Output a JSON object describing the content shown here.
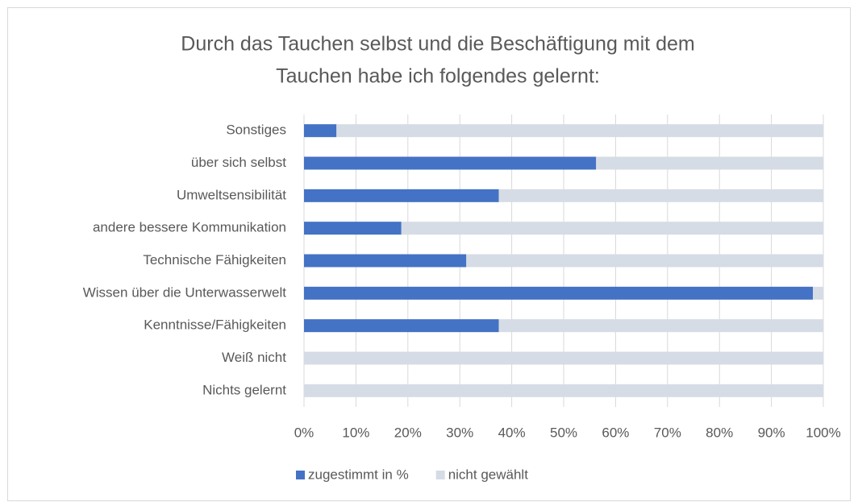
{
  "chart_data": {
    "type": "stacked_barh",
    "title": [
      "Durch das Tauchen selbst und die Beschäftigung mit dem",
      "Tauchen habe ich folgendes gelernt:"
    ],
    "categories": [
      "Sonstiges",
      "über sich selbst",
      "Umweltsensibilität",
      "andere bessere Kommunikation",
      "Technische Fähigkeiten",
      "Wissen über die Unterwasserwelt",
      "Kenntnisse/Fähigkeiten",
      "Weiß nicht",
      "Nichts gelernt"
    ],
    "series": [
      {
        "name": "zugestimmt in %",
        "color": "#4472c4",
        "values": [
          6.25,
          56.25,
          37.5,
          18.75,
          31.25,
          98,
          37.5,
          0,
          0
        ]
      },
      {
        "name": "nicht gewählt",
        "color": "#d6dce5",
        "values": [
          93.75,
          43.75,
          62.5,
          81.25,
          68.75,
          2,
          62.5,
          100,
          100
        ]
      }
    ],
    "xlim": [
      0,
      100
    ],
    "xticks": [
      {
        "value": 0,
        "label": "0%"
      },
      {
        "value": 10,
        "label": "10%"
      },
      {
        "value": 20,
        "label": "20%"
      },
      {
        "value": 30,
        "label": "30%"
      },
      {
        "value": 40,
        "label": "40%"
      },
      {
        "value": 50,
        "label": "50%"
      },
      {
        "value": 60,
        "label": "60%"
      },
      {
        "value": 70,
        "label": "70%"
      },
      {
        "value": 80,
        "label": "80%"
      },
      {
        "value": 90,
        "label": "90%"
      },
      {
        "value": 100,
        "label": "100%"
      }
    ],
    "grid": true,
    "legend": "bottom"
  }
}
